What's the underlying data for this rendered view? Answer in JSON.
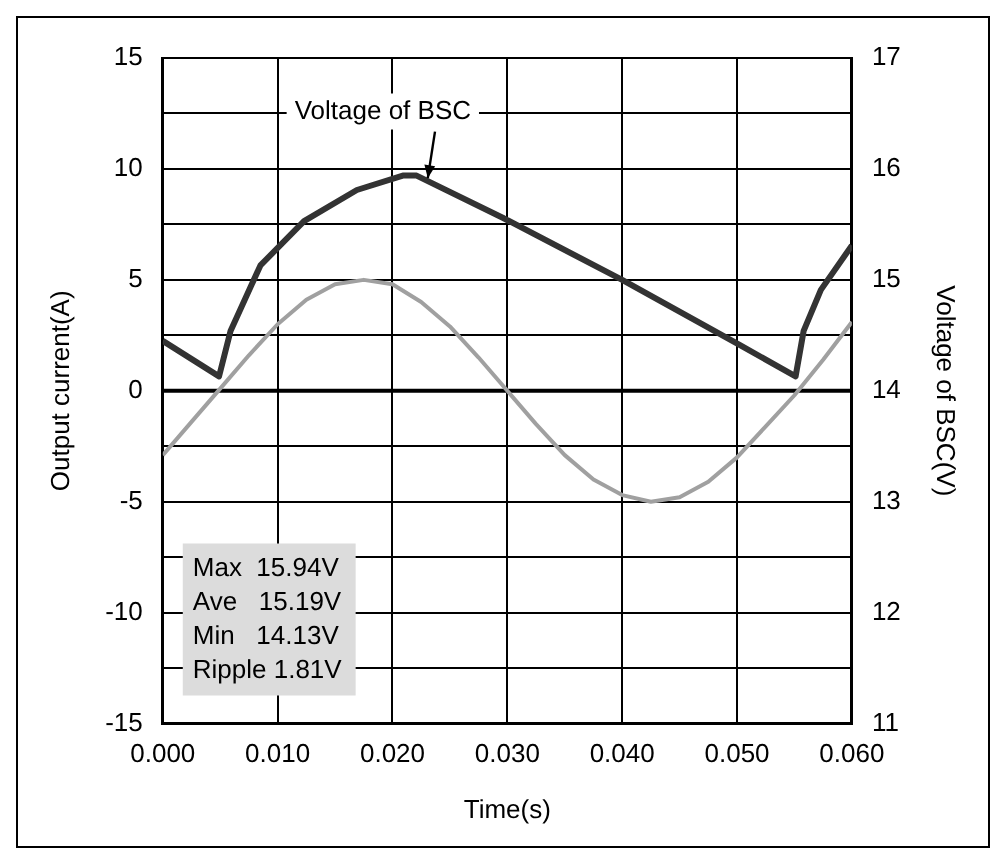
{
  "chart_data": {
    "type": "line",
    "xlabel": "Time(s)",
    "ylabel": "Output current(A)",
    "y2label": "Voltage of BSC(V)",
    "xlim": [
      0,
      0.06
    ],
    "xticks": [
      {
        "value": 0,
        "label": "0.000"
      },
      {
        "value": 0.01,
        "label": "0.010"
      },
      {
        "value": 0.02,
        "label": "0.020"
      },
      {
        "value": 0.03,
        "label": "0.030"
      },
      {
        "value": 0.04,
        "label": "0.040"
      },
      {
        "value": 0.05,
        "label": "0.050"
      },
      {
        "value": 0.06,
        "label": "0.060"
      }
    ],
    "ylim": [
      -15,
      15
    ],
    "yticks": [
      -15,
      {
        "value": -12.5,
        "label": null
      },
      -10,
      {
        "value": -7.5,
        "label": null
      },
      -5,
      {
        "value": -2.5,
        "label": null
      },
      0,
      {
        "value": 2.5,
        "label": null
      },
      5,
      {
        "value": 7.5,
        "label": null
      },
      10,
      {
        "value": 12.5,
        "label": null
      },
      15
    ],
    "y2lim": [
      11,
      17
    ],
    "y2ticks": [
      11,
      12,
      13,
      14,
      15,
      16,
      17
    ],
    "grid": true,
    "legend": false,
    "marker": "none",
    "line_style": "solid",
    "ref_lines": [
      {
        "axis": "y",
        "value": 0,
        "color": "#000000"
      }
    ],
    "annotations": [
      "Max  15.94V",
      "Ave   15.19V",
      "Min   14.13V",
      "Ripple 1.81V"
    ],
    "series": [
      {
        "name": "Voltage of BSC",
        "color": "#333333",
        "axis": "y2",
        "x": [
          0,
          0.0049,
          0.0059,
          0.0085,
          0.0123,
          0.0169,
          0.0209,
          0.0221,
          0.0296,
          0.04,
          0.0503,
          0.0551,
          0.0558,
          0.0573,
          0.06
        ],
        "values": [
          14.45,
          14.13,
          14.54,
          15.13,
          15.53,
          15.81,
          15.94,
          15.94,
          15.56,
          15.0,
          14.41,
          14.13,
          14.54,
          14.91,
          15.31
        ]
      },
      {
        "color": "#a0a0a0",
        "x": [
          0,
          0.0025,
          0.005,
          0.0075,
          0.01,
          0.0125,
          0.015,
          0.0175,
          0.02,
          0.0225,
          0.025,
          0.0275,
          0.03,
          0.0325,
          0.035,
          0.0375,
          0.04,
          0.0425,
          0.045,
          0.0475,
          0.05,
          0.0525,
          0.055,
          0.0575,
          0.06
        ],
        "values": [
          -2.9,
          -1.4,
          0.1,
          1.6,
          3.0,
          4.1,
          4.8,
          5.0,
          4.8,
          4.0,
          2.9,
          1.5,
          0.0,
          -1.5,
          -2.9,
          -4.0,
          -4.7,
          -5.0,
          -4.8,
          -4.1,
          -3.0,
          -1.6,
          -0.2,
          1.4,
          3.1
        ]
      }
    ]
  }
}
